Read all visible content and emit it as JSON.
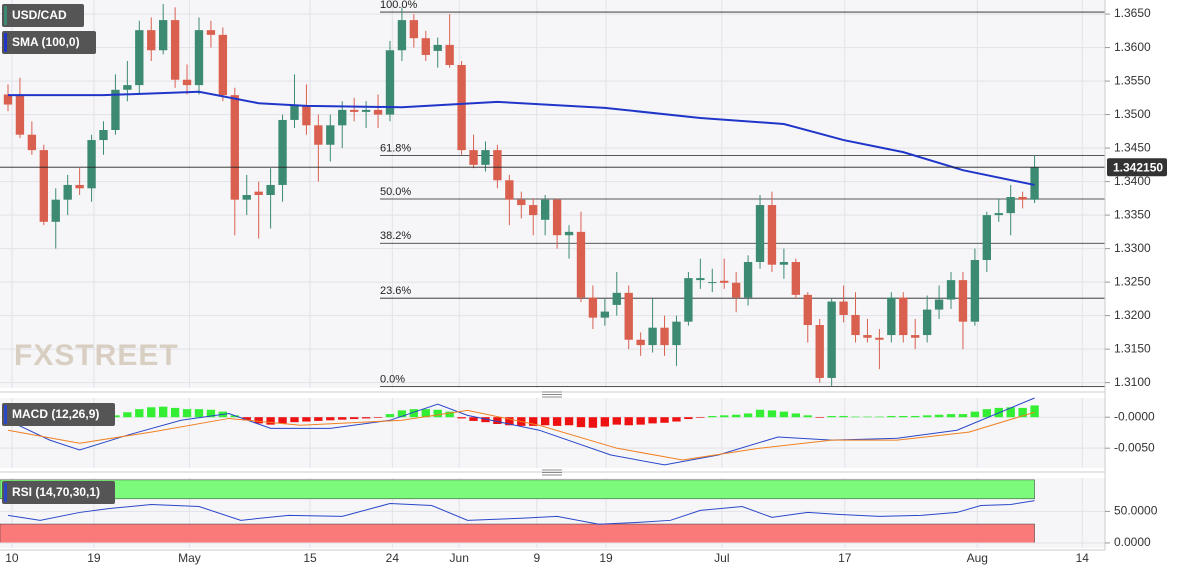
{
  "chart_data": [
    {
      "type": "candlestick",
      "title": "USD/CAD",
      "watermark": "FXSTREET",
      "xlim": [
        -0.67,
        91.9
      ],
      "xticks": [
        {
          "value": 0.33,
          "label": "10"
        },
        {
          "value": 7.2,
          "label": "19"
        },
        {
          "value": 15.2,
          "label": "May"
        },
        {
          "value": 25.3,
          "label": "15"
        },
        {
          "value": 32.2,
          "label": "24"
        },
        {
          "value": 37.8,
          "label": "Jun"
        },
        {
          "value": 44.3,
          "label": "9"
        },
        {
          "value": 50.1,
          "label": "19"
        },
        {
          "value": 59.8,
          "label": "Jul"
        },
        {
          "value": 70.1,
          "label": "17"
        },
        {
          "value": 81.2,
          "label": "Aug"
        },
        {
          "value": 90.0,
          "label": "14"
        }
      ],
      "ylim": [
        1.3092,
        1.3671
      ],
      "yticks": [
        {
          "value": 1.365,
          "label": "1.3650"
        },
        {
          "value": 1.36,
          "label": "1.3600"
        },
        {
          "value": 1.355,
          "label": "1.3550"
        },
        {
          "value": 1.35,
          "label": "1.3500"
        },
        {
          "value": 1.345,
          "label": "1.3450"
        },
        {
          "value": 1.34,
          "label": "1.3400"
        },
        {
          "value": 1.335,
          "label": "1.3350"
        },
        {
          "value": 1.33,
          "label": "1.3300"
        },
        {
          "value": 1.325,
          "label": "1.3250"
        },
        {
          "value": 1.32,
          "label": "1.3200"
        },
        {
          "value": 1.315,
          "label": "1.3150"
        },
        {
          "value": 1.31,
          "label": "1.3100"
        }
      ],
      "grid": true,
      "up_color": "#3d8a73",
      "down_color": "#d9604f",
      "open": [
        1.353,
        1.3529,
        1.347,
        1.3447,
        1.334,
        1.3373,
        1.3395,
        1.339,
        1.3462,
        1.3477,
        1.3537,
        1.3544,
        1.3626,
        1.3596,
        1.3641,
        1.3552,
        1.3544,
        1.3626,
        1.3619,
        1.3529,
        1.3373,
        1.3385,
        1.338,
        1.3395,
        1.3492,
        1.3514,
        1.3484,
        1.3455,
        1.3484,
        1.3507,
        1.3504,
        1.3507,
        1.35,
        1.3596,
        1.3641,
        1.3614,
        1.3595,
        1.3604,
        1.3574,
        1.3447,
        1.3425,
        1.3447,
        1.3402,
        1.3373,
        1.3365,
        1.3343,
        1.3373,
        1.332,
        1.3325,
        1.3227,
        1.3197,
        1.3216,
        1.3234,
        1.3164,
        1.3156,
        1.3182,
        1.3156,
        1.3191,
        1.3253,
        1.325,
        1.3252,
        1.3249,
        1.3227,
        1.328,
        1.3365,
        1.3276,
        1.328,
        1.3231,
        1.3186,
        1.3107,
        1.3221,
        1.3201,
        1.3171,
        1.3167,
        1.3171,
        1.3227,
        1.3171,
        1.3171,
        1.3209,
        1.3224,
        1.3253,
        1.3191,
        1.3283,
        1.335,
        1.3353,
        1.3377,
        1.3373
      ],
      "high": [
        1.3545,
        1.3555,
        1.349,
        1.3455,
        1.339,
        1.341,
        1.342,
        1.347,
        1.349,
        1.356,
        1.358,
        1.364,
        1.3645,
        1.3665,
        1.366,
        1.3575,
        1.3645,
        1.364,
        1.363,
        1.354,
        1.341,
        1.34,
        1.342,
        1.35,
        1.356,
        1.3545,
        1.35,
        1.35,
        1.352,
        1.3525,
        1.352,
        1.353,
        1.361,
        1.366,
        1.365,
        1.3625,
        1.3615,
        1.365,
        1.358,
        1.347,
        1.346,
        1.3455,
        1.341,
        1.3385,
        1.3375,
        1.338,
        1.3375,
        1.3335,
        1.3355,
        1.3245,
        1.3225,
        1.3265,
        1.3245,
        1.3175,
        1.3225,
        1.32,
        1.32,
        1.3265,
        1.3285,
        1.327,
        1.3285,
        1.3265,
        1.329,
        1.338,
        1.3385,
        1.33,
        1.3285,
        1.3235,
        1.3195,
        1.3225,
        1.3245,
        1.3235,
        1.3195,
        1.318,
        1.3235,
        1.3235,
        1.3195,
        1.323,
        1.3245,
        1.3265,
        1.3265,
        1.33,
        1.3355,
        1.3375,
        1.3395,
        1.3385,
        1.344
      ],
      "low": [
        1.3505,
        1.3465,
        1.344,
        1.3335,
        1.33,
        1.335,
        1.338,
        1.337,
        1.344,
        1.347,
        1.352,
        1.353,
        1.358,
        1.359,
        1.354,
        1.353,
        1.353,
        1.36,
        1.352,
        1.332,
        1.335,
        1.3315,
        1.333,
        1.337,
        1.348,
        1.347,
        1.34,
        1.343,
        1.345,
        1.349,
        1.348,
        1.348,
        1.349,
        1.358,
        1.36,
        1.358,
        1.357,
        1.357,
        1.344,
        1.342,
        1.3415,
        1.339,
        1.3335,
        1.3345,
        1.332,
        1.332,
        1.33,
        1.3285,
        1.322,
        1.318,
        1.3185,
        1.32,
        1.315,
        1.314,
        1.3145,
        1.314,
        1.3125,
        1.3185,
        1.324,
        1.3235,
        1.324,
        1.3205,
        1.3215,
        1.327,
        1.3265,
        1.3255,
        1.3225,
        1.316,
        1.31,
        1.3095,
        1.319,
        1.316,
        1.316,
        1.312,
        1.316,
        1.316,
        1.315,
        1.316,
        1.3195,
        1.321,
        1.315,
        1.3185,
        1.3265,
        1.334,
        1.332,
        1.336,
        1.3368
      ],
      "close": [
        1.3515,
        1.347,
        1.3447,
        1.334,
        1.3373,
        1.3395,
        1.339,
        1.3462,
        1.3477,
        1.3537,
        1.3544,
        1.3626,
        1.3596,
        1.3641,
        1.3552,
        1.3544,
        1.3626,
        1.3619,
        1.3529,
        1.3373,
        1.338,
        1.338,
        1.3395,
        1.3492,
        1.3514,
        1.3484,
        1.3455,
        1.3484,
        1.3507,
        1.3504,
        1.3507,
        1.35,
        1.3596,
        1.3641,
        1.3614,
        1.3589,
        1.3604,
        1.3574,
        1.3447,
        1.3425,
        1.3447,
        1.3402,
        1.3373,
        1.3365,
        1.335,
        1.3373,
        1.332,
        1.3325,
        1.3227,
        1.3197,
        1.3206,
        1.3234,
        1.3164,
        1.3156,
        1.3182,
        1.3156,
        1.3191,
        1.3256,
        1.3256,
        1.325,
        1.3249,
        1.3227,
        1.328,
        1.3365,
        1.3276,
        1.328,
        1.3231,
        1.3186,
        1.3107,
        1.3221,
        1.3201,
        1.3171,
        1.3167,
        1.3164,
        1.3227,
        1.3171,
        1.3167,
        1.3209,
        1.3224,
        1.3253,
        1.3191,
        1.3283,
        1.335,
        1.3353,
        1.3377,
        1.3373,
        1.34215
      ],
      "series": [
        {
          "name": "SMA (100,0)",
          "color": "#1f36c9",
          "x": [
            0,
            8,
            16,
            21,
            25,
            33,
            41,
            50,
            58,
            65,
            70,
            75,
            80,
            86
          ],
          "values": [
            1.3529,
            1.3529,
            1.3534,
            1.3517,
            1.3513,
            1.3511,
            1.3519,
            1.351,
            1.3495,
            1.3486,
            1.3462,
            1.3444,
            1.3417,
            1.3395
          ]
        }
      ],
      "levels": [
        {
          "label": "100.0%",
          "value": 1.3653
        },
        {
          "label": "61.8%",
          "value": 1.3439
        },
        {
          "label": "50.0%",
          "value": 1.3374
        },
        {
          "label": "38.2%",
          "value": 1.3308
        },
        {
          "label": "23.6%",
          "value": 1.3226
        },
        {
          "label": "0.0%",
          "value": 1.3094
        }
      ],
      "last_price": {
        "value": 1.34215,
        "label": "1.342150"
      }
    },
    {
      "type": "macd",
      "title": "MACD (12,26,9)",
      "ylim": [
        -0.0082,
        0.0031
      ],
      "yticks": [
        {
          "value": 0,
          "label": "-0.0000"
        },
        {
          "value": -0.005,
          "label": "-0.0050"
        }
      ],
      "histogram": {
        "up_color": "#33ee33",
        "down_color": "#ee1111",
        "values": [
          -0.001,
          -0.0012,
          -0.0012,
          -0.0011,
          -0.001,
          -0.0008,
          -0.0006,
          -0.0003,
          -0.0001,
          0.0003,
          0.0008,
          0.0013,
          0.0016,
          0.0017,
          0.0015,
          0.0013,
          0.0013,
          0.0012,
          0.0009,
          0.0003,
          -0.0005,
          -0.001,
          -0.0012,
          -0.001,
          -0.0008,
          -0.0007,
          -0.0006,
          -0.0005,
          -0.0004,
          -0.0003,
          -0.0002,
          -0.0001,
          0.0005,
          0.0011,
          0.0013,
          0.0013,
          0.0012,
          0.0009,
          -0.0002,
          -0.0006,
          -0.0008,
          -0.0011,
          -0.0013,
          -0.0014,
          -0.0014,
          -0.0013,
          -0.0014,
          -0.0013,
          -0.0016,
          -0.0017,
          -0.0015,
          -0.0012,
          -0.0013,
          -0.0012,
          -0.001,
          -0.0009,
          -0.0007,
          -0.0003,
          -0.0001,
          0.0002,
          0.0003,
          0.0004,
          0.0006,
          0.0012,
          0.0011,
          0.0009,
          0.0006,
          0.0003,
          -0.0001,
          0.0002,
          0.0002,
          0.0001,
          0.0001,
          0.0001,
          0.0002,
          0.0002,
          0.0002,
          0.0003,
          0.0004,
          0.0005,
          0.0005,
          0.0009,
          0.0013,
          0.0015,
          0.0016,
          0.0015,
          0.0019
        ]
      },
      "series": [
        {
          "color": "#2a47c9",
          "x": [
            0,
            3.5,
            6,
            10,
            14.5,
            18.5,
            22,
            27,
            32,
            36,
            38.5,
            44.5,
            50.5,
            55,
            59.5,
            64.5,
            69,
            74.5,
            79.5,
            86
          ],
          "values": [
            -0.0005,
            -0.0037,
            -0.0053,
            -0.0029,
            -0.0005,
            0.0006,
            -0.0018,
            -0.0018,
            -0.0005,
            0.0021,
            0.0003,
            -0.0021,
            -0.0061,
            -0.0077,
            -0.0061,
            -0.0032,
            -0.0037,
            -0.0034,
            -0.0021,
            0.0031
          ]
        },
        {
          "color": "#f08020",
          "x": [
            0,
            6,
            12,
            18.5,
            24.5,
            33,
            38.5,
            44.5,
            51,
            56.5,
            63,
            69,
            74.5,
            80.5,
            86
          ],
          "values": [
            -0.0021,
            -0.0042,
            -0.0024,
            -0.0002,
            -0.0013,
            -0.0005,
            0.0011,
            -0.0013,
            -0.005,
            -0.0069,
            -0.005,
            -0.0037,
            -0.0037,
            -0.0024,
            0.0008
          ]
        }
      ]
    },
    {
      "type": "line",
      "title": "RSI (14,70,30,1)",
      "ylim": [
        -8,
        103
      ],
      "yticks": [
        {
          "value": 50,
          "label": "50.0000"
        },
        {
          "value": 0,
          "label": "0.0000"
        }
      ],
      "zones": [
        {
          "from": 70,
          "to": 100,
          "color": "#7cfa7c"
        },
        {
          "from": 0,
          "to": 30,
          "color": "#fa7a7a"
        }
      ],
      "series": [
        {
          "color": "#2a47c9",
          "x": [
            0,
            2.7,
            6,
            8.5,
            12,
            16,
            19.5,
            23.5,
            28,
            32,
            35.5,
            38.5,
            43,
            46,
            49.5,
            53,
            55.5,
            58,
            61.5,
            64,
            67,
            69.5,
            73,
            76.5,
            79.5,
            81.5,
            84,
            86
          ],
          "values": [
            43.8,
            35.9,
            48.4,
            54.7,
            60.9,
            57.8,
            35.9,
            43.8,
            42.2,
            62.5,
            59.4,
            35.9,
            39.1,
            42.2,
            29.7,
            32.8,
            35.9,
            51.6,
            57.8,
            40.6,
            48.4,
            45.3,
            42.2,
            43.8,
            48.4,
            59.4,
            60.9,
            67.2
          ]
        }
      ]
    }
  ]
}
